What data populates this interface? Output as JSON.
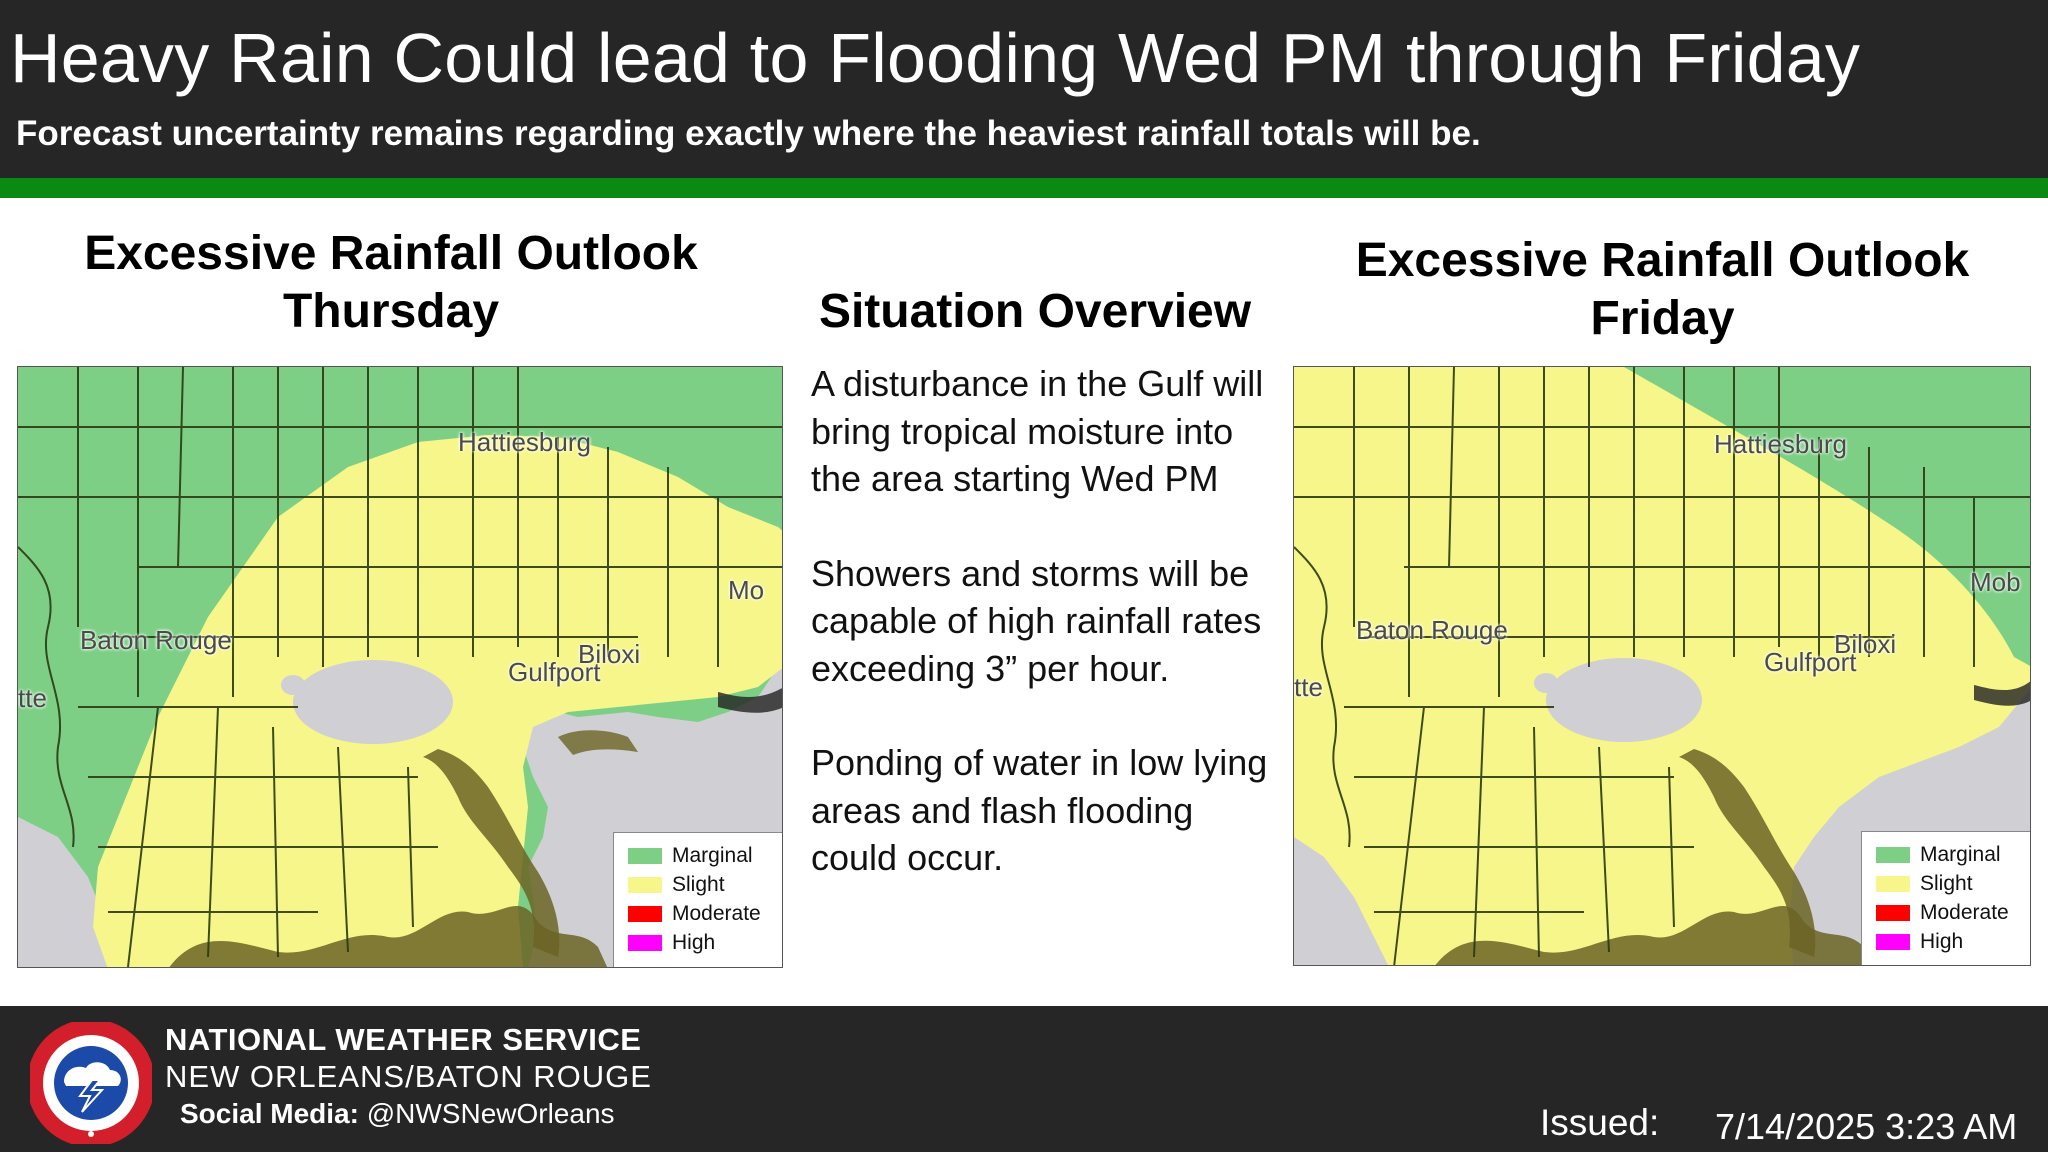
{
  "header": {
    "title": "Heavy Rain Could lead to Flooding Wed PM through Friday",
    "subtitle": "Forecast uncertainty remains regarding exactly where the heaviest rainfall totals will be."
  },
  "left_panel": {
    "title_line1": "Excessive Rainfall Outlook",
    "title_line2": "Thursday",
    "cities": [
      "Hattiesburg",
      "Baton Rouge",
      "Biloxi",
      "Gulfport",
      "Mo",
      "tte"
    ]
  },
  "right_panel": {
    "title_line1": "Excessive Rainfall Outlook",
    "title_line2": "Friday",
    "cities": [
      "Hattiesburg",
      "Baton Rouge",
      "Biloxi",
      "Gulfport",
      "Mob",
      "tte"
    ]
  },
  "legend": {
    "items": [
      {
        "label": "Marginal",
        "color": "#7dcf86"
      },
      {
        "label": "Slight",
        "color": "#f6f68a"
      },
      {
        "label": "Moderate",
        "color": "#ff0000"
      },
      {
        "label": "High",
        "color": "#ff00ff"
      }
    ]
  },
  "overview": {
    "title": "Situation Overview",
    "paragraphs": [
      "A disturbance in the Gulf will bring tropical moisture into the area starting Wed PM",
      "Showers and storms will be capable of high rainfall rates exceeding 3” per hour.",
      "Ponding of water in low lying areas and flash flooding could occur."
    ]
  },
  "footer": {
    "org_name": "NATIONAL WEATHER SERVICE",
    "office": "NEW ORLEANS/BATON ROUGE",
    "social_label": "Social Media:",
    "social_handle": "@NWSNewOrleans",
    "issued_label": "Issued:",
    "issued_value": "7/14/2025 3:23 AM"
  },
  "colors": {
    "header_bg": "#262626",
    "accent_green": "#0a8a12",
    "marginal": "#7dcf86",
    "slight": "#f6f68a",
    "water": "#cfcfd4",
    "marsh": "#6b6424"
  }
}
